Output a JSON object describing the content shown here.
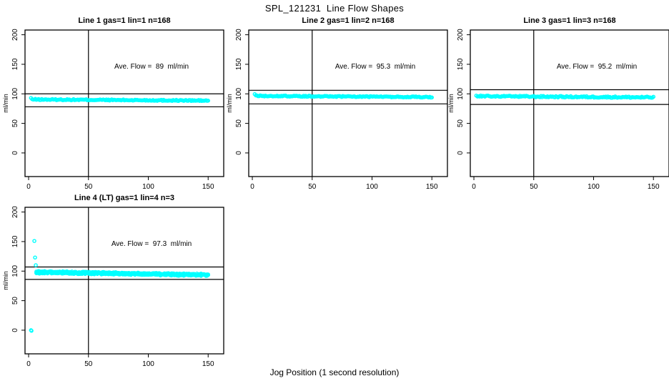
{
  "page_title": "SPL_121231  Line Flow Shapes",
  "xlabel": "Jog Position (1 second resolution)",
  "ylabel": "ml/min",
  "colors": {
    "background": "#FFFFFF",
    "axis": "#000000",
    "points": "#00FFFF"
  },
  "axes": {
    "x_ticks": [
      0,
      50,
      100,
      150
    ],
    "y_ticks": [
      0,
      50,
      100,
      150,
      200
    ],
    "xlim": [
      -3,
      163
    ],
    "ylim": [
      -40,
      208
    ],
    "grid": false
  },
  "chart_data": [
    {
      "type": "scatter",
      "title": "Line 1 gas=1 lin=1 n=168",
      "n": 168,
      "annotation": "Ave. Flow =  89  ml/min",
      "ave_flow_ml_min": 89,
      "ylabel": "ml/min",
      "x_ref_line": 50,
      "y_ref_lines": [
        100,
        78
      ],
      "extra_points": [
        [
          2,
          93
        ]
      ],
      "bands": [
        {
          "x_start": 3,
          "x_end": 150,
          "y_start": 90.5,
          "y_end": 88.5,
          "jitter": 1.0,
          "points": 167
        }
      ]
    },
    {
      "type": "scatter",
      "title": "Line 2 gas=1 lin=2 n=168",
      "n": 168,
      "annotation": "Ave. Flow =  95.3  ml/min",
      "ave_flow_ml_min": 95.3,
      "ylabel": "ml/min",
      "x_ref_line": 50,
      "y_ref_lines": [
        106,
        83
      ],
      "extra_points": [
        [
          2,
          99.5
        ]
      ],
      "bands": [
        {
          "x_start": 3,
          "x_end": 150,
          "y_start": 96.5,
          "y_end": 94.5,
          "jitter": 0.9,
          "points": 167
        }
      ]
    },
    {
      "type": "scatter",
      "title": "Line 3 gas=1 lin=3 n=168",
      "n": 168,
      "annotation": "Ave. Flow =  95.2  ml/min",
      "ave_flow_ml_min": 95.2,
      "ylabel": "ml/min",
      "x_ref_line": 50,
      "y_ref_lines": [
        107,
        82
      ],
      "extra_points": [
        [
          2,
          97
        ]
      ],
      "bands": [
        {
          "x_start": 3,
          "x_end": 150,
          "y_start": 96,
          "y_end": 94,
          "jitter": 1.2,
          "points": 167
        }
      ]
    },
    {
      "type": "scatter",
      "title": "Line 4 (LT) gas=1 lin=4 n=3",
      "n": 3,
      "annotation": "Ave. Flow =  97.3  ml/min",
      "ave_flow_ml_min": 97.3,
      "ylabel": "ml/min",
      "x_ref_line": 50,
      "y_ref_lines": [
        107,
        86
      ],
      "extra_points": [
        [
          2,
          0
        ],
        [
          2.4,
          -1
        ],
        [
          4.8,
          151
        ],
        [
          5.4,
          123
        ],
        [
          6,
          110
        ]
      ],
      "bands": [
        {
          "x_start": 6.5,
          "x_end": 150,
          "y_start": 99,
          "y_end": 93.5,
          "jitter": 1.7,
          "points": 170
        },
        {
          "x_start": 6.5,
          "x_end": 150,
          "y_start": 98,
          "y_end": 93,
          "jitter": 1.7,
          "points": 170
        },
        {
          "x_start": 6.5,
          "x_end": 150,
          "y_start": 97.5,
          "y_end": 94,
          "jitter": 1.7,
          "points": 170
        }
      ]
    }
  ]
}
